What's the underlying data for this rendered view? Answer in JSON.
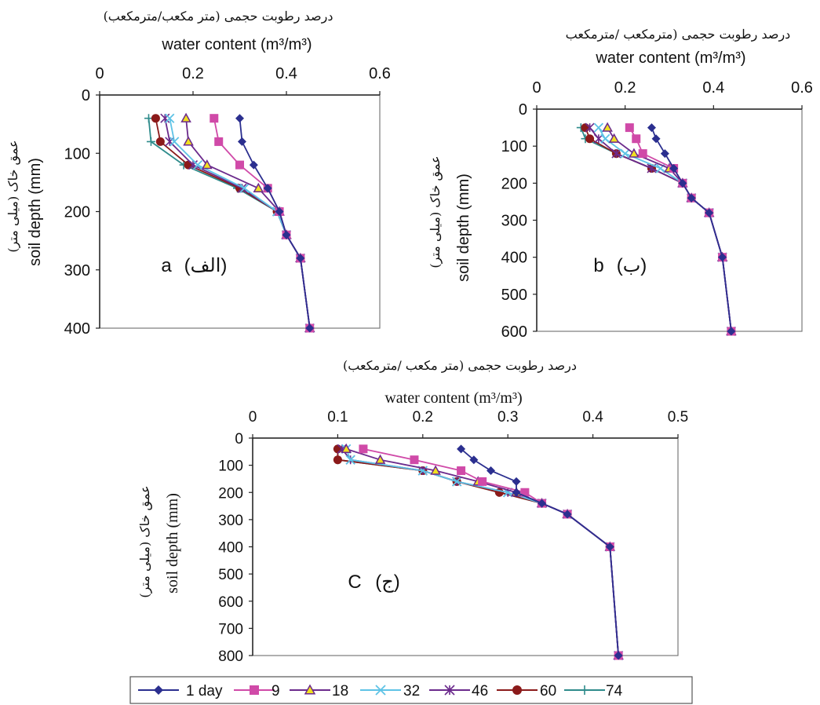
{
  "colors": {
    "1 day": "#2b2f8f",
    "9": "#d04aa8",
    "18": "#6b2a8c",
    "32": "#5ec3e6",
    "46": "#6b2a8c",
    "60": "#8b1a1a",
    "74": "#2e8b8b",
    "marker18_fill": "#f0e020"
  },
  "markers": {
    "1 day": "diamond",
    "9": "square",
    "18": "triangle",
    "32": "x",
    "46": "star",
    "60": "circle",
    "74": "plus"
  },
  "legend": {
    "entries": [
      "1 day",
      "9",
      "18",
      "32",
      "46",
      "60",
      "74"
    ]
  },
  "chart_data": [
    {
      "type": "line",
      "panel": "a",
      "panel_label": "a",
      "panel_label_fa": "(الف)",
      "title_fa": "درصد رطوبت حجمی (متر مکعب/مترمکعب)",
      "xlabel": "water content (m³/m³)",
      "ylabel": "soil depth (mm)",
      "ylabel_fa": "عمق خاک (میلی متر)",
      "xlim": [
        0,
        0.6
      ],
      "ylim": [
        0,
        400
      ],
      "xticks": [
        "0",
        "0.2",
        "0.4",
        "0.6"
      ],
      "yticks": [
        "0",
        "100",
        "200",
        "300",
        "400"
      ],
      "series": [
        {
          "name": "1 day",
          "points": [
            [
              0.3,
              40
            ],
            [
              0.305,
              80
            ],
            [
              0.33,
              120
            ],
            [
              0.36,
              160
            ],
            [
              0.385,
              200
            ],
            [
              0.4,
              240
            ],
            [
              0.43,
              280
            ],
            [
              0.45,
              400
            ]
          ]
        },
        {
          "name": "9",
          "points": [
            [
              0.245,
              40
            ],
            [
              0.255,
              80
            ],
            [
              0.3,
              120
            ],
            [
              0.36,
              160
            ],
            [
              0.385,
              200
            ],
            [
              0.4,
              240
            ],
            [
              0.43,
              280
            ],
            [
              0.45,
              400
            ]
          ]
        },
        {
          "name": "18",
          "points": [
            [
              0.185,
              40
            ],
            [
              0.19,
              80
            ],
            [
              0.23,
              120
            ],
            [
              0.34,
              160
            ],
            [
              0.385,
              200
            ],
            [
              0.4,
              240
            ],
            [
              0.43,
              280
            ],
            [
              0.45,
              400
            ]
          ]
        },
        {
          "name": "32",
          "points": [
            [
              0.15,
              40
            ],
            [
              0.16,
              80
            ],
            [
              0.21,
              120
            ],
            [
              0.31,
              160
            ],
            [
              0.38,
              200
            ],
            [
              0.4,
              240
            ],
            [
              0.43,
              280
            ],
            [
              0.45,
              400
            ]
          ]
        },
        {
          "name": "46",
          "points": [
            [
              0.14,
              40
            ],
            [
              0.15,
              80
            ],
            [
              0.2,
              120
            ],
            [
              0.305,
              160
            ],
            [
              0.38,
              200
            ],
            [
              0.4,
              240
            ],
            [
              0.43,
              280
            ],
            [
              0.45,
              400
            ]
          ]
        },
        {
          "name": "60",
          "points": [
            [
              0.12,
              40
            ],
            [
              0.13,
              80
            ],
            [
              0.19,
              120
            ],
            [
              0.3,
              160
            ],
            [
              0.38,
              200
            ],
            [
              0.4,
              240
            ],
            [
              0.43,
              280
            ],
            [
              0.45,
              400
            ]
          ]
        },
        {
          "name": "74",
          "points": [
            [
              0.105,
              40
            ],
            [
              0.11,
              80
            ],
            [
              0.18,
              120
            ],
            [
              0.295,
              160
            ],
            [
              0.38,
              200
            ],
            [
              0.4,
              240
            ],
            [
              0.43,
              280
            ],
            [
              0.45,
              400
            ]
          ]
        }
      ]
    },
    {
      "type": "line",
      "panel": "b",
      "panel_label": "b",
      "panel_label_fa": "(ب)",
      "title_fa": "درصد رطوبت حجمی (مترمکعب /مترمکعب",
      "xlabel": "water content (m³/m³)",
      "ylabel": "soil depth (mm)",
      "ylabel_fa": "عمق خاک (میلی متر)",
      "xlim": [
        0,
        0.6
      ],
      "ylim": [
        0,
        600
      ],
      "xticks": [
        "0",
        "0.2",
        "0.4",
        "0.6"
      ],
      "yticks": [
        "0",
        "100",
        "200",
        "300",
        "400",
        "500",
        "600"
      ],
      "series": [
        {
          "name": "1 day",
          "points": [
            [
              0.26,
              50
            ],
            [
              0.27,
              80
            ],
            [
              0.29,
              120
            ],
            [
              0.31,
              160
            ],
            [
              0.33,
              200
            ],
            [
              0.35,
              240
            ],
            [
              0.39,
              280
            ],
            [
              0.42,
              400
            ],
            [
              0.44,
              600
            ]
          ]
        },
        {
          "name": "9",
          "points": [
            [
              0.21,
              50
            ],
            [
              0.225,
              80
            ],
            [
              0.24,
              120
            ],
            [
              0.31,
              160
            ],
            [
              0.33,
              200
            ],
            [
              0.35,
              240
            ],
            [
              0.39,
              280
            ],
            [
              0.42,
              400
            ],
            [
              0.44,
              600
            ]
          ]
        },
        {
          "name": "18",
          "points": [
            [
              0.16,
              50
            ],
            [
              0.175,
              80
            ],
            [
              0.22,
              120
            ],
            [
              0.3,
              160
            ],
            [
              0.33,
              200
            ],
            [
              0.35,
              240
            ],
            [
              0.39,
              280
            ],
            [
              0.42,
              400
            ],
            [
              0.44,
              600
            ]
          ]
        },
        {
          "name": "32",
          "points": [
            [
              0.14,
              50
            ],
            [
              0.155,
              80
            ],
            [
              0.2,
              120
            ],
            [
              0.28,
              160
            ],
            [
              0.33,
              200
            ],
            [
              0.35,
              240
            ],
            [
              0.39,
              280
            ],
            [
              0.42,
              400
            ],
            [
              0.44,
              600
            ]
          ]
        },
        {
          "name": "46",
          "points": [
            [
              0.12,
              50
            ],
            [
              0.14,
              80
            ],
            [
              0.18,
              120
            ],
            [
              0.26,
              160
            ],
            [
              0.33,
              200
            ],
            [
              0.35,
              240
            ],
            [
              0.39,
              280
            ],
            [
              0.42,
              400
            ],
            [
              0.44,
              600
            ]
          ]
        },
        {
          "name": "60",
          "points": [
            [
              0.11,
              50
            ],
            [
              0.12,
              80
            ],
            [
              0.18,
              120
            ],
            [
              0.26,
              160
            ],
            [
              0.33,
              200
            ],
            [
              0.35,
              240
            ],
            [
              0.39,
              280
            ],
            [
              0.42,
              400
            ],
            [
              0.44,
              600
            ]
          ]
        },
        {
          "name": "74",
          "points": [
            [
              0.1,
              50
            ],
            [
              0.11,
              80
            ],
            [
              0.18,
              120
            ],
            [
              0.26,
              160
            ],
            [
              0.33,
              200
            ],
            [
              0.35,
              240
            ],
            [
              0.39,
              280
            ],
            [
              0.42,
              400
            ],
            [
              0.44,
              600
            ]
          ]
        }
      ]
    },
    {
      "type": "line",
      "panel": "C",
      "panel_label": "C",
      "panel_label_fa": "(ج)",
      "title_fa": "درصد رطوبت حجمی (متر مکعب /مترمکعب)",
      "xlabel": "water content (m³/m³)",
      "ylabel": "soil depth (mm)",
      "ylabel_fa": "عمق خاک (میلی متر)",
      "xlim": [
        0,
        0.5
      ],
      "ylim": [
        0,
        800
      ],
      "xticks": [
        "0",
        "0.1",
        "0.2",
        "0.3",
        "0.4",
        "0.5"
      ],
      "yticks": [
        "0",
        "100",
        "200",
        "300",
        "400",
        "500",
        "600",
        "700",
        "800"
      ],
      "series": [
        {
          "name": "1 day",
          "points": [
            [
              0.245,
              40
            ],
            [
              0.26,
              80
            ],
            [
              0.28,
              120
            ],
            [
              0.31,
              160
            ],
            [
              0.31,
              200
            ],
            [
              0.34,
              240
            ],
            [
              0.37,
              280
            ],
            [
              0.42,
              400
            ],
            [
              0.43,
              800
            ]
          ]
        },
        {
          "name": "9",
          "points": [
            [
              0.13,
              40
            ],
            [
              0.19,
              80
            ],
            [
              0.245,
              120
            ],
            [
              0.27,
              160
            ],
            [
              0.32,
              200
            ],
            [
              0.34,
              240
            ],
            [
              0.37,
              280
            ],
            [
              0.42,
              400
            ],
            [
              0.43,
              800
            ]
          ]
        },
        {
          "name": "18",
          "points": [
            [
              0.11,
              40
            ],
            [
              0.15,
              80
            ],
            [
              0.215,
              120
            ],
            [
              0.265,
              160
            ],
            [
              0.31,
              200
            ],
            [
              0.34,
              240
            ],
            [
              0.37,
              280
            ],
            [
              0.42,
              400
            ],
            [
              0.43,
              800
            ]
          ]
        },
        {
          "name": "32",
          "points": [
            [
              0.11,
              40
            ],
            [
              0.115,
              80
            ],
            [
              0.2,
              120
            ],
            [
              0.24,
              160
            ],
            [
              0.3,
              200
            ],
            [
              0.34,
              240
            ],
            [
              0.37,
              280
            ],
            [
              0.42,
              400
            ],
            [
              0.43,
              800
            ]
          ]
        },
        {
          "name": "46",
          "points": [
            [
              0.105,
              40
            ],
            [
              0.115,
              80
            ],
            [
              0.2,
              120
            ],
            [
              0.24,
              160
            ],
            [
              0.3,
              200
            ],
            [
              0.34,
              240
            ],
            [
              0.37,
              280
            ],
            [
              0.42,
              400
            ],
            [
              0.43,
              800
            ]
          ]
        },
        {
          "name": "60",
          "points": [
            [
              0.1,
              40
            ],
            [
              0.1,
              80
            ],
            [
              0.2,
              120
            ],
            [
              0.24,
              160
            ],
            [
              0.29,
              200
            ],
            [
              0.34,
              240
            ],
            [
              0.37,
              280
            ],
            [
              0.42,
              400
            ],
            [
              0.43,
              800
            ]
          ]
        },
        {
          "name": "74",
          "points": [
            [
              0.1,
              40
            ],
            [
              0.1,
              80
            ],
            [
              0.2,
              120
            ],
            [
              0.24,
              160
            ],
            [
              0.29,
              200
            ],
            [
              0.34,
              240
            ],
            [
              0.37,
              280
            ],
            [
              0.42,
              400
            ],
            [
              0.43,
              800
            ]
          ]
        }
      ]
    }
  ]
}
